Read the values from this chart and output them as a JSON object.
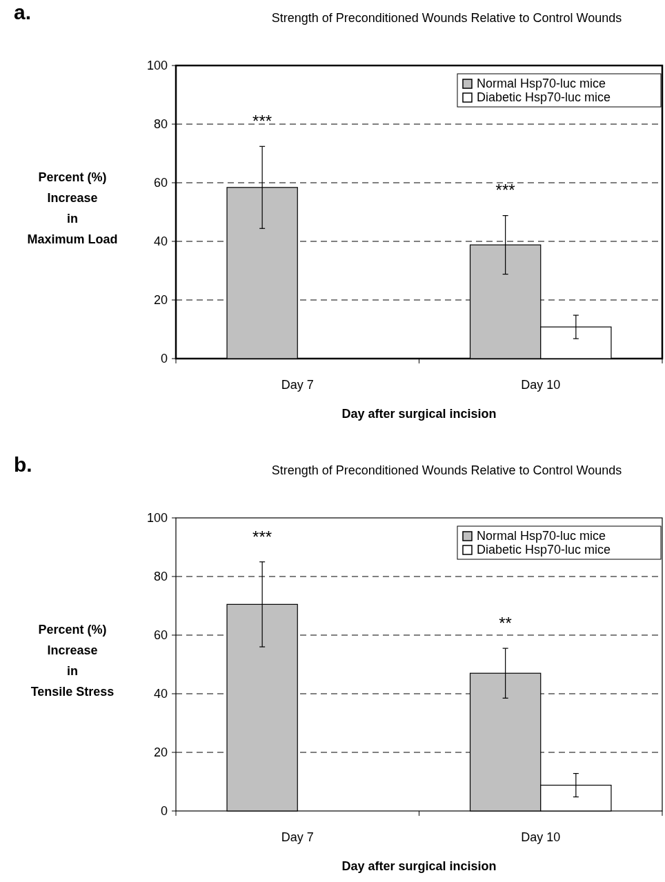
{
  "chart_data": [
    {
      "type": "bar",
      "title": "Strength of Preconditioned Wounds Relative to Control Wounds",
      "xlabel": "Day after surgical incision",
      "ylabel": "Percent (%)\nIncrease\nin\nMaximum Load",
      "categories": [
        "Day 7",
        "Day 10"
      ],
      "series": [
        {
          "name": "Normal Hsp70-luc mice",
          "color": "#c0c0c0",
          "values": [
            58.4,
            38.8
          ],
          "errors": [
            14,
            10
          ]
        },
        {
          "name": "Diabetic Hsp70-luc mice",
          "color": "#ffffff",
          "values": [
            null,
            10.8
          ],
          "errors": [
            null,
            4
          ]
        }
      ],
      "ylim": [
        0,
        100
      ],
      "yticks": [
        0,
        20,
        40,
        60,
        80,
        100
      ],
      "grid": "y",
      "legend": "top right",
      "annotations": [
        "a.",
        "***",
        "***"
      ]
    },
    {
      "type": "bar",
      "title": "Strength of Preconditioned Wounds Relative to Control Wounds",
      "xlabel": "Day after surgical incision",
      "ylabel": "Percent (%)\nIncrease\nin\nTensile Stress",
      "categories": [
        "Day 7",
        "Day 10"
      ],
      "series": [
        {
          "name": "Normal Hsp70-luc mice",
          "color": "#c0c0c0",
          "values": [
            70.5,
            47
          ],
          "errors": [
            14.5,
            8.5
          ]
        },
        {
          "name": "Diabetic Hsp70-luc mice",
          "color": "#ffffff",
          "values": [
            null,
            8.8
          ],
          "errors": [
            null,
            4
          ]
        }
      ],
      "ylim": [
        0,
        100
      ],
      "yticks": [
        0,
        20,
        40,
        60,
        80,
        100
      ],
      "grid": "y",
      "legend": "top right",
      "annotations": [
        "b.",
        "***",
        "**"
      ]
    }
  ]
}
